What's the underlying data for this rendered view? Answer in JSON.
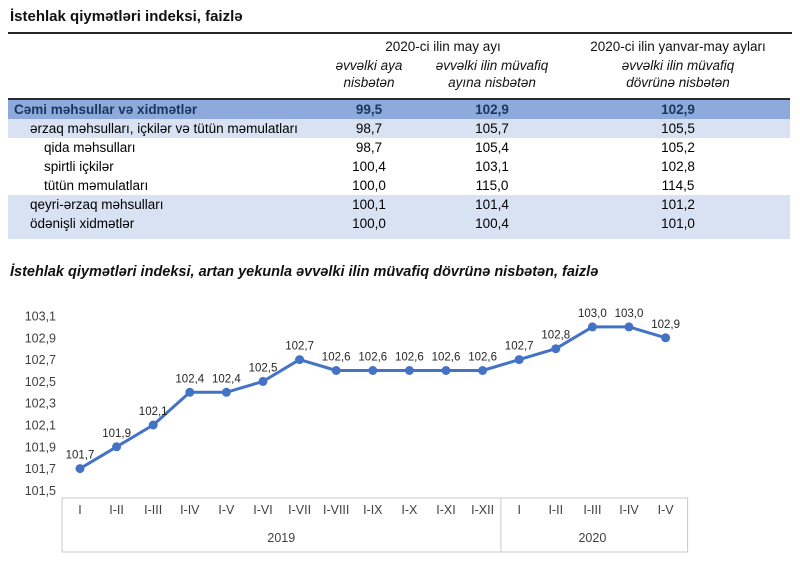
{
  "page": {
    "title": "İstehlak qiymətləri indeksi, faizlə"
  },
  "table": {
    "col_groups": [
      "2020-ci ilin may ayı",
      "2020-ci ilin yanvar-may ayları"
    ],
    "sub_headers": [
      {
        "line1": "əvvəlki aya",
        "line2": "nisbətən"
      },
      {
        "line1": "əvvəlki ilin müvafiq",
        "line2": "ayına nisbətən"
      },
      {
        "line1": "əvvəlki ilin müvafiq",
        "line2": "dövrünə nisbətən"
      }
    ],
    "rows": [
      {
        "label": "Cəmi məhsullar və xidmətlər",
        "v1": "99,5",
        "v2": "102,9",
        "v3": "102,9"
      },
      {
        "label": "ərzaq məhsulları, içkilər və tütün məmulatları",
        "v1": "98,7",
        "v2": "105,7",
        "v3": "105,5"
      },
      {
        "label": "qida məhsulları",
        "v1": "98,7",
        "v2": "105,4",
        "v3": "105,2"
      },
      {
        "label": "spirtli içkilər",
        "v1": "100,4",
        "v2": "103,1",
        "v3": "102,8"
      },
      {
        "label": "tütün məmulatları",
        "v1": "100,0",
        "v2": "115,0",
        "v3": "114,5"
      },
      {
        "label": "qeyri-ərzaq məhsulları",
        "v1": "100,1",
        "v2": "101,4",
        "v3": "101,2"
      },
      {
        "label": "ödənişli xidmətlər",
        "v1": "100,0",
        "v2": "100,4",
        "v3": "101,0"
      }
    ]
  },
  "chart_data": {
    "type": "line",
    "title": "İstehlak qiymətləri indeksi, artan yekunla əvvəlki ilin müvafiq dövrünə nisbətən, faizlə",
    "categories": [
      "I",
      "I-II",
      "I-III",
      "I-IV",
      "I-V",
      "I-VI",
      "I-VII",
      "I-VIII",
      "I-IX",
      "I-X",
      "I-XI",
      "I-XII",
      "I",
      "I-II",
      "I-III",
      "I-IV",
      "I-V"
    ],
    "year_groups": [
      {
        "label": "2019",
        "count": 12
      },
      {
        "label": "2020",
        "count": 5
      }
    ],
    "values": [
      101.7,
      101.9,
      102.1,
      102.4,
      102.4,
      102.5,
      102.7,
      102.6,
      102.6,
      102.6,
      102.6,
      102.6,
      102.7,
      102.8,
      103.0,
      103.0,
      102.9
    ],
    "point_labels": [
      "101,7",
      "101,9",
      "102,1",
      "102,4",
      "102,4",
      "102,5",
      "102,7",
      "102,6",
      "102,6",
      "102,6",
      "102,6",
      "102,6",
      "102,7",
      "102,8",
      "103,0",
      "103,0",
      "102,9"
    ],
    "y_ticks": [
      "103,1",
      "102,9",
      "102,7",
      "102,5",
      "102,3",
      "102,1",
      "101,9",
      "101,7",
      "101,5"
    ],
    "ylim": [
      101.5,
      103.1
    ],
    "y_step": 0.2,
    "grid": false,
    "legend": "none",
    "line_color": "#4472C4",
    "label_color": "#262626",
    "axis_text_color": "#404040",
    "axis_box_color": "#c9c9c9"
  },
  "colors": {
    "row_total_bg": "#8EA9DB",
    "row_group_bg": "#D9E2F3",
    "row_total_text": "#17375E",
    "rule": "#262626"
  }
}
